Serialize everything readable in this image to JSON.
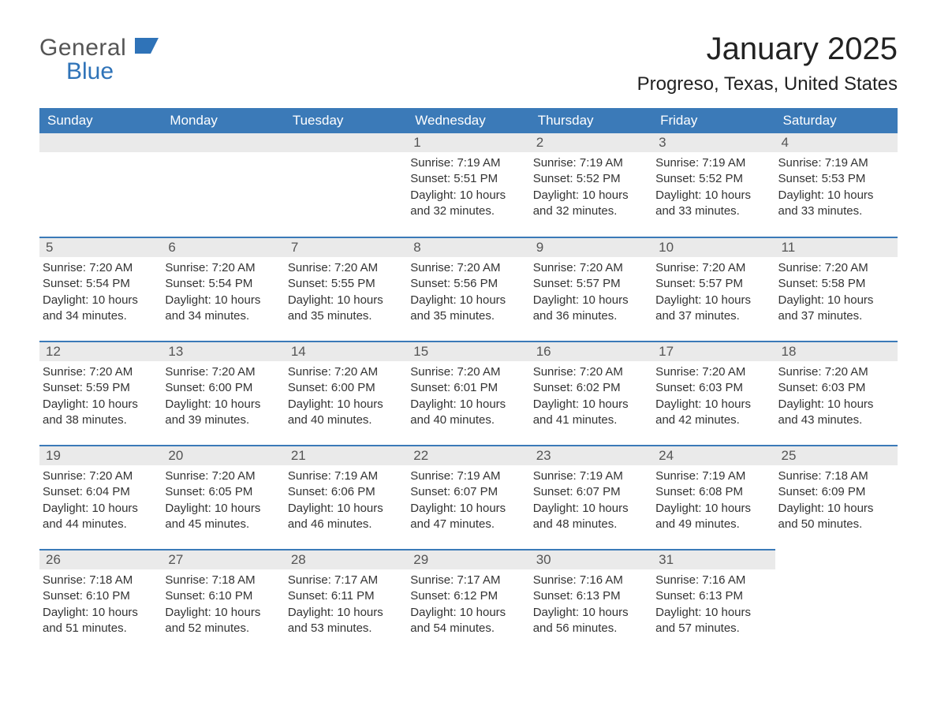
{
  "brand": {
    "word1": "General",
    "word2": "Blue",
    "logo_color": "#2f73b8"
  },
  "header": {
    "month_title": "January 2025",
    "location": "Progreso, Texas, United States"
  },
  "colors": {
    "header_bg": "#3b7ab8",
    "header_text": "#ffffff",
    "daynum_bg": "#eaeaea",
    "row_border": "#3b7ab8"
  },
  "weekdays": [
    "Sunday",
    "Monday",
    "Tuesday",
    "Wednesday",
    "Thursday",
    "Friday",
    "Saturday"
  ],
  "weeks": [
    [
      null,
      null,
      null,
      {
        "n": "1",
        "sunrise": "Sunrise: 7:19 AM",
        "sunset": "Sunset: 5:51 PM",
        "daylight": "Daylight: 10 hours and 32 minutes."
      },
      {
        "n": "2",
        "sunrise": "Sunrise: 7:19 AM",
        "sunset": "Sunset: 5:52 PM",
        "daylight": "Daylight: 10 hours and 32 minutes."
      },
      {
        "n": "3",
        "sunrise": "Sunrise: 7:19 AM",
        "sunset": "Sunset: 5:52 PM",
        "daylight": "Daylight: 10 hours and 33 minutes."
      },
      {
        "n": "4",
        "sunrise": "Sunrise: 7:19 AM",
        "sunset": "Sunset: 5:53 PM",
        "daylight": "Daylight: 10 hours and 33 minutes."
      }
    ],
    [
      {
        "n": "5",
        "sunrise": "Sunrise: 7:20 AM",
        "sunset": "Sunset: 5:54 PM",
        "daylight": "Daylight: 10 hours and 34 minutes."
      },
      {
        "n": "6",
        "sunrise": "Sunrise: 7:20 AM",
        "sunset": "Sunset: 5:54 PM",
        "daylight": "Daylight: 10 hours and 34 minutes."
      },
      {
        "n": "7",
        "sunrise": "Sunrise: 7:20 AM",
        "sunset": "Sunset: 5:55 PM",
        "daylight": "Daylight: 10 hours and 35 minutes."
      },
      {
        "n": "8",
        "sunrise": "Sunrise: 7:20 AM",
        "sunset": "Sunset: 5:56 PM",
        "daylight": "Daylight: 10 hours and 35 minutes."
      },
      {
        "n": "9",
        "sunrise": "Sunrise: 7:20 AM",
        "sunset": "Sunset: 5:57 PM",
        "daylight": "Daylight: 10 hours and 36 minutes."
      },
      {
        "n": "10",
        "sunrise": "Sunrise: 7:20 AM",
        "sunset": "Sunset: 5:57 PM",
        "daylight": "Daylight: 10 hours and 37 minutes."
      },
      {
        "n": "11",
        "sunrise": "Sunrise: 7:20 AM",
        "sunset": "Sunset: 5:58 PM",
        "daylight": "Daylight: 10 hours and 37 minutes."
      }
    ],
    [
      {
        "n": "12",
        "sunrise": "Sunrise: 7:20 AM",
        "sunset": "Sunset: 5:59 PM",
        "daylight": "Daylight: 10 hours and 38 minutes."
      },
      {
        "n": "13",
        "sunrise": "Sunrise: 7:20 AM",
        "sunset": "Sunset: 6:00 PM",
        "daylight": "Daylight: 10 hours and 39 minutes."
      },
      {
        "n": "14",
        "sunrise": "Sunrise: 7:20 AM",
        "sunset": "Sunset: 6:00 PM",
        "daylight": "Daylight: 10 hours and 40 minutes."
      },
      {
        "n": "15",
        "sunrise": "Sunrise: 7:20 AM",
        "sunset": "Sunset: 6:01 PM",
        "daylight": "Daylight: 10 hours and 40 minutes."
      },
      {
        "n": "16",
        "sunrise": "Sunrise: 7:20 AM",
        "sunset": "Sunset: 6:02 PM",
        "daylight": "Daylight: 10 hours and 41 minutes."
      },
      {
        "n": "17",
        "sunrise": "Sunrise: 7:20 AM",
        "sunset": "Sunset: 6:03 PM",
        "daylight": "Daylight: 10 hours and 42 minutes."
      },
      {
        "n": "18",
        "sunrise": "Sunrise: 7:20 AM",
        "sunset": "Sunset: 6:03 PM",
        "daylight": "Daylight: 10 hours and 43 minutes."
      }
    ],
    [
      {
        "n": "19",
        "sunrise": "Sunrise: 7:20 AM",
        "sunset": "Sunset: 6:04 PM",
        "daylight": "Daylight: 10 hours and 44 minutes."
      },
      {
        "n": "20",
        "sunrise": "Sunrise: 7:20 AM",
        "sunset": "Sunset: 6:05 PM",
        "daylight": "Daylight: 10 hours and 45 minutes."
      },
      {
        "n": "21",
        "sunrise": "Sunrise: 7:19 AM",
        "sunset": "Sunset: 6:06 PM",
        "daylight": "Daylight: 10 hours and 46 minutes."
      },
      {
        "n": "22",
        "sunrise": "Sunrise: 7:19 AM",
        "sunset": "Sunset: 6:07 PM",
        "daylight": "Daylight: 10 hours and 47 minutes."
      },
      {
        "n": "23",
        "sunrise": "Sunrise: 7:19 AM",
        "sunset": "Sunset: 6:07 PM",
        "daylight": "Daylight: 10 hours and 48 minutes."
      },
      {
        "n": "24",
        "sunrise": "Sunrise: 7:19 AM",
        "sunset": "Sunset: 6:08 PM",
        "daylight": "Daylight: 10 hours and 49 minutes."
      },
      {
        "n": "25",
        "sunrise": "Sunrise: 7:18 AM",
        "sunset": "Sunset: 6:09 PM",
        "daylight": "Daylight: 10 hours and 50 minutes."
      }
    ],
    [
      {
        "n": "26",
        "sunrise": "Sunrise: 7:18 AM",
        "sunset": "Sunset: 6:10 PM",
        "daylight": "Daylight: 10 hours and 51 minutes."
      },
      {
        "n": "27",
        "sunrise": "Sunrise: 7:18 AM",
        "sunset": "Sunset: 6:10 PM",
        "daylight": "Daylight: 10 hours and 52 minutes."
      },
      {
        "n": "28",
        "sunrise": "Sunrise: 7:17 AM",
        "sunset": "Sunset: 6:11 PM",
        "daylight": "Daylight: 10 hours and 53 minutes."
      },
      {
        "n": "29",
        "sunrise": "Sunrise: 7:17 AM",
        "sunset": "Sunset: 6:12 PM",
        "daylight": "Daylight: 10 hours and 54 minutes."
      },
      {
        "n": "30",
        "sunrise": "Sunrise: 7:16 AM",
        "sunset": "Sunset: 6:13 PM",
        "daylight": "Daylight: 10 hours and 56 minutes."
      },
      {
        "n": "31",
        "sunrise": "Sunrise: 7:16 AM",
        "sunset": "Sunset: 6:13 PM",
        "daylight": "Daylight: 10 hours and 57 minutes."
      },
      null
    ]
  ]
}
